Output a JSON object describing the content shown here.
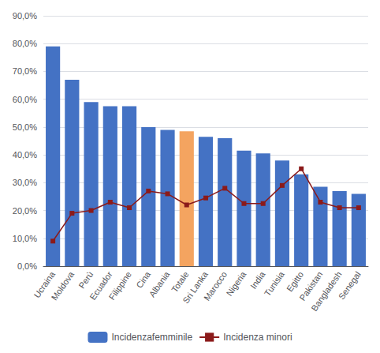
{
  "chart_data": {
    "type": "bar",
    "categories": [
      "Ucraina",
      "Moldova",
      "Perù",
      "Ecuador",
      "Filippine",
      "Cina",
      "Albania",
      "Totale",
      "Sri Lanka",
      "Marocco",
      "Nigeria",
      "India",
      "Tunisia",
      "Egitto",
      "Pakistan",
      "Bangladesh",
      "Senegal"
    ],
    "series": [
      {
        "name": "Incidenzafemminile",
        "type": "bar",
        "colors": [
          "#4472C4",
          "#4472C4",
          "#4472C4",
          "#4472C4",
          "#4472C4",
          "#4472C4",
          "#4472C4",
          "#F4A460",
          "#4472C4",
          "#4472C4",
          "#4472C4",
          "#4472C4",
          "#4472C4",
          "#4472C4",
          "#4472C4",
          "#4472C4",
          "#4472C4"
        ],
        "values": [
          79.0,
          67.0,
          59.0,
          57.5,
          57.5,
          50.0,
          49.0,
          48.5,
          46.5,
          46.0,
          41.5,
          40.5,
          38.0,
          33.0,
          28.5,
          27.0,
          26.0
        ]
      },
      {
        "name": "Incidenza minori",
        "type": "line",
        "color": "#8B1A1A",
        "marker": "square",
        "values": [
          9.0,
          19.0,
          20.0,
          23.0,
          21.0,
          27.0,
          26.0,
          22.0,
          24.5,
          28.0,
          22.5,
          22.5,
          29.0,
          35.0,
          23.0,
          21.0,
          21.0
        ]
      }
    ],
    "ylim": [
      0,
      90
    ],
    "yticks": [
      {
        "value": 0,
        "label": "0,0%"
      },
      {
        "value": 10,
        "label": "10,0%"
      },
      {
        "value": 20,
        "label": "20,0%"
      },
      {
        "value": 30,
        "label": "30,0%"
      },
      {
        "value": 40,
        "label": "40,0%"
      },
      {
        "value": 50,
        "label": "50,0%"
      },
      {
        "value": 60,
        "label": "60,0%"
      },
      {
        "value": 70,
        "label": "70,0%"
      },
      {
        "value": 80,
        "label": "80,0%"
      },
      {
        "value": 90,
        "label": "90,0%"
      }
    ],
    "grid": true,
    "legend": "bottom"
  }
}
